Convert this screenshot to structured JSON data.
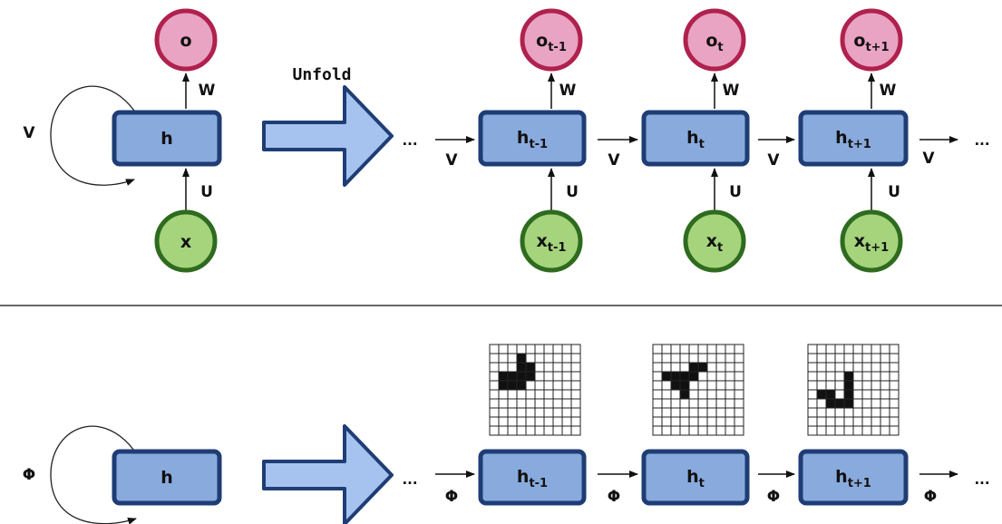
{
  "top": {
    "folded": {
      "hidden": "h",
      "output": "o",
      "input": "x",
      "recurrent": "V",
      "out_weight": "W",
      "in_weight": "U"
    },
    "unfold_label": "Unfold",
    "ellipsis": "...",
    "steps": [
      {
        "h_base": "h",
        "h_sub": "t-1",
        "o_base": "o",
        "o_sub": "t-1",
        "x_base": "x",
        "x_sub": "t-1",
        "w": "W",
        "u": "U",
        "v_in": "V"
      },
      {
        "h_base": "h",
        "h_sub": "t",
        "o_base": "o",
        "o_sub": "t",
        "x_base": "x",
        "x_sub": "t",
        "w": "W",
        "u": "U",
        "v_in": "V"
      },
      {
        "h_base": "h",
        "h_sub": "t+1",
        "o_base": "o",
        "o_sub": "t+1",
        "x_base": "x",
        "x_sub": "t+1",
        "w": "W",
        "u": "U",
        "v_in": "V"
      }
    ],
    "v_out": "V"
  },
  "bottom": {
    "folded": {
      "hidden": "h",
      "recurrent": "Φ"
    },
    "ellipsis": "...",
    "steps": [
      {
        "h_base": "h",
        "h_sub": "t-1",
        "phi_in": "Φ"
      },
      {
        "h_base": "h",
        "h_sub": "t",
        "phi_in": "Φ"
      },
      {
        "h_base": "h",
        "h_sub": "t+1",
        "phi_in": "Φ"
      }
    ],
    "phi_out": "Φ",
    "grids": [
      {
        "rows": 10,
        "cols": 10,
        "filled": [
          [
            1,
            3
          ],
          [
            2,
            3
          ],
          [
            2,
            4
          ],
          [
            3,
            1
          ],
          [
            3,
            2
          ],
          [
            3,
            3
          ],
          [
            3,
            4
          ],
          [
            4,
            1
          ],
          [
            4,
            2
          ],
          [
            4,
            3
          ]
        ]
      },
      {
        "rows": 10,
        "cols": 10,
        "filled": [
          [
            2,
            4
          ],
          [
            2,
            5
          ],
          [
            3,
            1
          ],
          [
            3,
            2
          ],
          [
            3,
            3
          ],
          [
            3,
            4
          ],
          [
            4,
            2
          ],
          [
            4,
            3
          ],
          [
            5,
            3
          ]
        ]
      },
      {
        "rows": 10,
        "cols": 10,
        "filled": [
          [
            3,
            4
          ],
          [
            4,
            4
          ],
          [
            5,
            1
          ],
          [
            5,
            2
          ],
          [
            5,
            4
          ],
          [
            6,
            2
          ],
          [
            6,
            3
          ],
          [
            6,
            4
          ]
        ]
      }
    ]
  },
  "colors": {
    "hidden_fill": "#89aadc",
    "hidden_stroke": "#1f3d75",
    "output_fill": "#e9a3c3",
    "output_stroke": "#b0214d",
    "input_fill": "#a5d47c",
    "input_stroke": "#2e6b1f",
    "arrow_fill": "#a5c3ee",
    "arrow_stroke": "#1f3d75"
  }
}
